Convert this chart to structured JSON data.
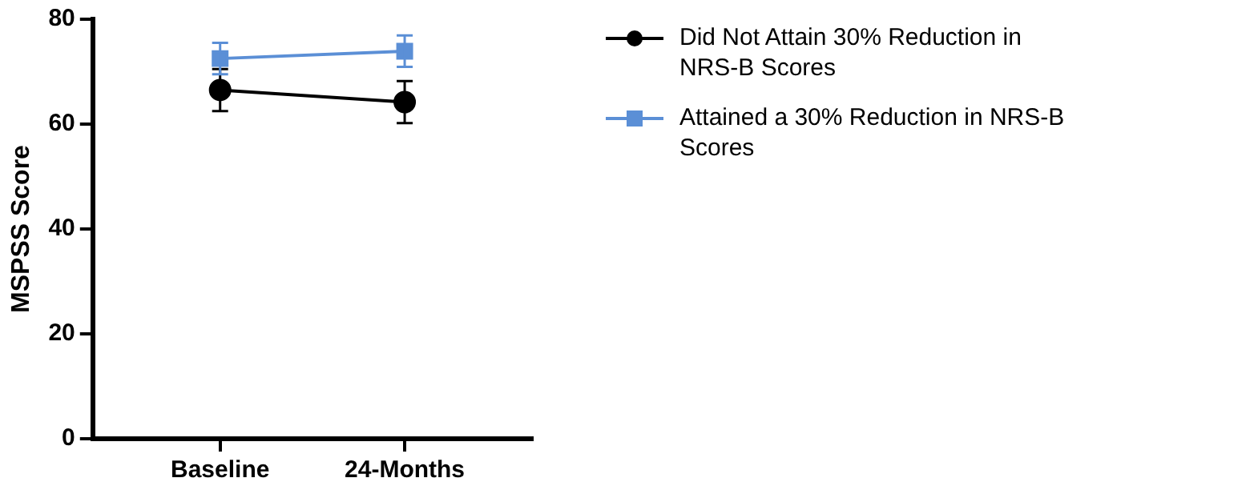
{
  "chart_data": {
    "type": "line",
    "ylabel": "MSPSS Score",
    "categories": [
      "Baseline",
      "24-Months"
    ],
    "ylim": [
      0,
      80
    ],
    "yticks": [
      0,
      20,
      40,
      60,
      80
    ],
    "grid": false,
    "legend": "right",
    "series": [
      {
        "name": "Did Not Attain 30% Reduction in NRS-B Scores",
        "color": "#000000",
        "marker": "circle",
        "values": [
          66.5,
          64.2
        ],
        "errors": [
          4,
          4
        ]
      },
      {
        "name": "Attained a 30% Reduction in NRS-B Scores",
        "color": "#5b8fd6",
        "marker": "square",
        "values": [
          72.5,
          73.9
        ],
        "errors": [
          3,
          3
        ]
      }
    ]
  }
}
